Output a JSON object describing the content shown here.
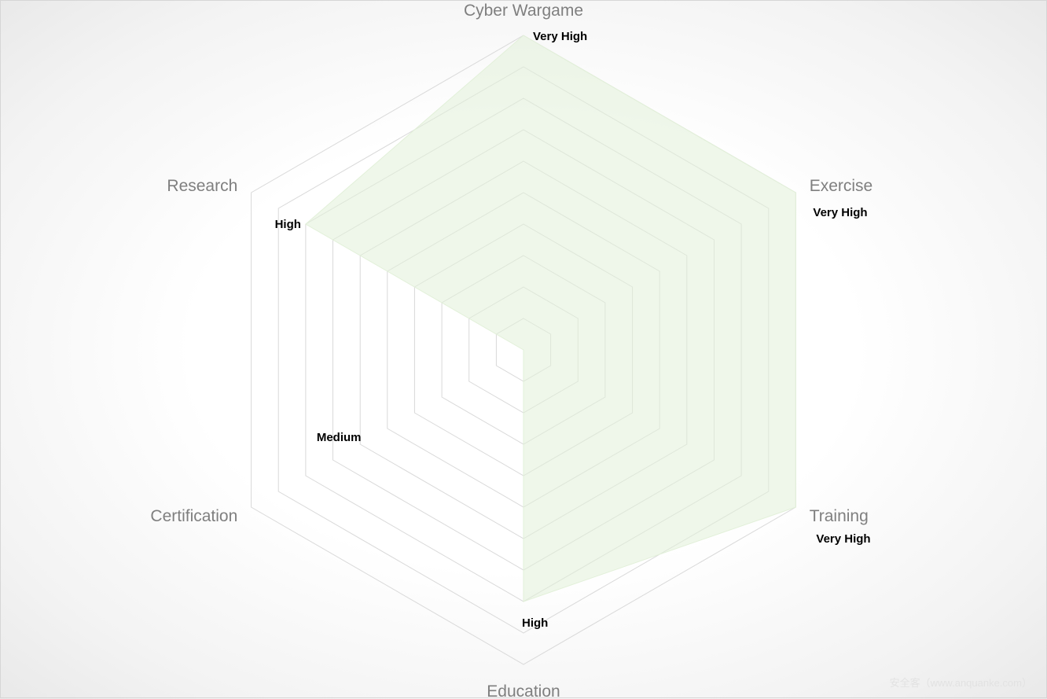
{
  "chart_data": {
    "type": "radar",
    "title": "",
    "categories": [
      "Cyber Wargame",
      "Exercise",
      "Training",
      "Education",
      "Certification",
      "Research"
    ],
    "series": [
      {
        "values": [
          10,
          10,
          10,
          8,
          0,
          8
        ],
        "labels": [
          "Very High",
          "Very High",
          "Very High",
          "High",
          "Medium",
          "High"
        ],
        "color": "#e2f0d9"
      }
    ],
    "rlim": [
      0,
      10
    ],
    "grid_levels": 10,
    "grid": true,
    "legend": "none"
  },
  "colors": {
    "grid": "#d9d9d9",
    "fill": "#e2f0d9",
    "category_text": "#7f7f7f",
    "label_text": "#000000"
  },
  "watermark": "安全客（www.anquanke.com）"
}
